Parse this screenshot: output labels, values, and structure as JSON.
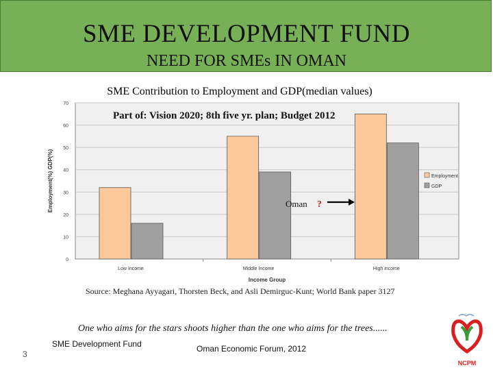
{
  "header": {
    "title": "SME DEVELOPMENT FUND",
    "subtitle": "NEED FOR SMEs IN OMAN"
  },
  "slide_subtitle": "SME Contribution to Employment and GDP(median values)",
  "chart_data": {
    "type": "bar",
    "categories": [
      "Low Income",
      "Middle Income",
      "High income"
    ],
    "series": [
      {
        "name": "Employment",
        "values": [
          32,
          55,
          65
        ],
        "color": "#fdc99a"
      },
      {
        "name": "GDP",
        "values": [
          16,
          39,
          52
        ],
        "color": "#a0a0a0"
      }
    ],
    "xlabel": "Income Group",
    "ylabel": "Employment(%) GDP(%)",
    "ylim": [
      0,
      70
    ],
    "yticks": [
      "0",
      "10",
      "20",
      "30",
      "40",
      "50",
      "60",
      "70"
    ],
    "grid": true,
    "legend": "right",
    "plot_bg": "#f0f0f0",
    "annotations": {
      "vision_text": "Part of: Vision 2020; 8th five yr. plan; Budget 2012",
      "oman_label": "Oman",
      "question_mark": "?"
    }
  },
  "source": "Source: Meghana Ayyagari, Thorsten Beck, and Asli Demirguc-Kunt; World Bank paper 3127",
  "quote": "One who aims for the stars shoots higher than the one who aims for the trees......",
  "footer": {
    "left": "SME Development Fund",
    "center": "Oman Economic Forum, 2012",
    "page": "3"
  },
  "logo": {
    "text": "NCPM",
    "colors": {
      "red": "#d82020",
      "green": "#3a9a3a"
    }
  }
}
